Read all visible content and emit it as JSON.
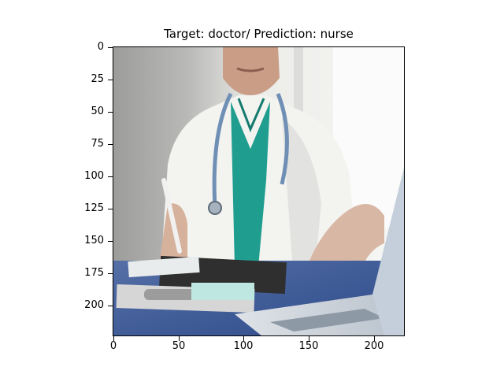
{
  "figure": {
    "title": "Target: doctor/ Prediction: nurse"
  },
  "axes": {
    "x": {
      "ticks": [
        "0",
        "50",
        "100",
        "150",
        "200"
      ],
      "values": [
        0,
        50,
        100,
        150,
        200
      ],
      "range": [
        -0.5,
        223.5
      ]
    },
    "y": {
      "ticks": [
        "0",
        "25",
        "50",
        "75",
        "100",
        "125",
        "150",
        "175",
        "200"
      ],
      "values": [
        0,
        25,
        50,
        75,
        100,
        125,
        150,
        175,
        200
      ],
      "range": [
        -0.5,
        223.5
      ],
      "inverted": true
    }
  },
  "image": {
    "subject": "doctor in white coat with stethoscope writing on clipboard and using laptop",
    "colors": {
      "coat": "#f2f2ef",
      "scrubs": "#1f9e8f",
      "desk": "#3f5f9e",
      "wall_left": "#a9aaa8",
      "stethoscope": "#6f8fb5",
      "skin": "#d6b19c",
      "clipboard": "#2f2f2f"
    }
  }
}
